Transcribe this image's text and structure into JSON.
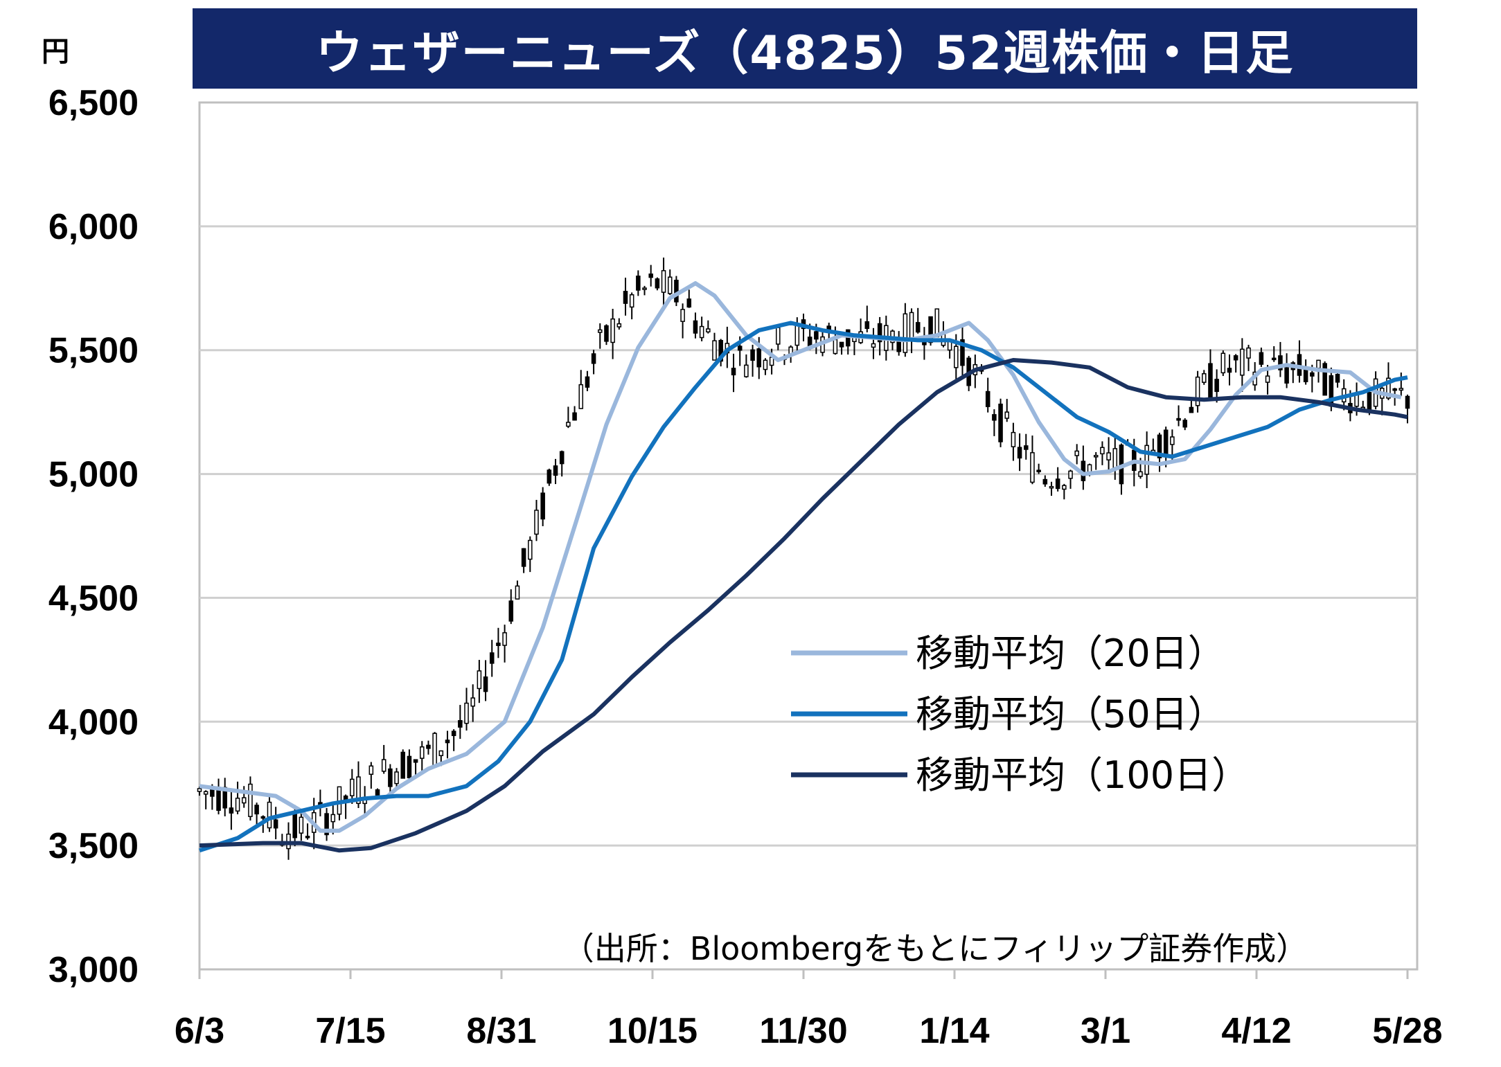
{
  "chart_data": {
    "type": "candlestick-line",
    "title": "ウェザーニューズ（4825）52週株価・日足",
    "unit": "円",
    "ylim": [
      3000,
      6500
    ],
    "yticks": [
      "6,500",
      "6,000",
      "5,500",
      "5,000",
      "4,500",
      "4,000",
      "3,500",
      "3,000"
    ],
    "ytick_values": [
      6500,
      6000,
      5500,
      5000,
      4500,
      4000,
      3500,
      3000
    ],
    "xticks": [
      "6/3",
      "7/15",
      "8/31",
      "10/15",
      "11/30",
      "1/14",
      "3/1",
      "4/12",
      "5/28"
    ],
    "grid": true,
    "legend_placement": "center-right",
    "source": "（出所：Bloombergをもとにフィリップ証券作成）",
    "series": [
      {
        "name": "移動平均（20日）",
        "color": "#9ab7dc",
        "points": [
          [
            0,
            3740
          ],
          [
            6,
            3720
          ],
          [
            12,
            3700
          ],
          [
            16,
            3640
          ],
          [
            19,
            3560
          ],
          [
            22,
            3560
          ],
          [
            26,
            3620
          ],
          [
            31,
            3730
          ],
          [
            36,
            3810
          ],
          [
            42,
            3870
          ],
          [
            48,
            4000
          ],
          [
            54,
            4380
          ],
          [
            60,
            4870
          ],
          [
            64,
            5200
          ],
          [
            69,
            5510
          ],
          [
            74,
            5710
          ],
          [
            78,
            5770
          ],
          [
            81,
            5720
          ],
          [
            86,
            5560
          ],
          [
            91,
            5460
          ],
          [
            96,
            5510
          ],
          [
            101,
            5560
          ],
          [
            106,
            5550
          ],
          [
            111,
            5540
          ],
          [
            116,
            5560
          ],
          [
            121,
            5610
          ],
          [
            124,
            5540
          ],
          [
            128,
            5400
          ],
          [
            132,
            5210
          ],
          [
            136,
            5060
          ],
          [
            139,
            5000
          ],
          [
            143,
            5010
          ],
          [
            147,
            5050
          ],
          [
            151,
            5040
          ],
          [
            155,
            5060
          ],
          [
            159,
            5180
          ],
          [
            163,
            5320
          ],
          [
            167,
            5420
          ],
          [
            171,
            5440
          ],
          [
            176,
            5420
          ],
          [
            181,
            5410
          ],
          [
            185,
            5330
          ],
          [
            189,
            5310
          ]
        ]
      },
      {
        "name": "移動平均（50日）",
        "color": "#1272bd",
        "points": [
          [
            0,
            3480
          ],
          [
            6,
            3530
          ],
          [
            11,
            3610
          ],
          [
            16,
            3640
          ],
          [
            21,
            3670
          ],
          [
            26,
            3690
          ],
          [
            31,
            3700
          ],
          [
            36,
            3700
          ],
          [
            42,
            3740
          ],
          [
            47,
            3840
          ],
          [
            52,
            4000
          ],
          [
            57,
            4250
          ],
          [
            62,
            4700
          ],
          [
            68,
            4990
          ],
          [
            73,
            5190
          ],
          [
            78,
            5350
          ],
          [
            83,
            5500
          ],
          [
            88,
            5580
          ],
          [
            93,
            5610
          ],
          [
            98,
            5580
          ],
          [
            103,
            5560
          ],
          [
            108,
            5550
          ],
          [
            113,
            5540
          ],
          [
            118,
            5540
          ],
          [
            123,
            5500
          ],
          [
            128,
            5430
          ],
          [
            133,
            5330
          ],
          [
            138,
            5230
          ],
          [
            143,
            5170
          ],
          [
            148,
            5090
          ],
          [
            153,
            5070
          ],
          [
            158,
            5110
          ],
          [
            163,
            5150
          ],
          [
            168,
            5190
          ],
          [
            173,
            5260
          ],
          [
            178,
            5300
          ],
          [
            183,
            5330
          ],
          [
            188,
            5380
          ],
          [
            190,
            5390
          ]
        ]
      },
      {
        "name": "移動平均（100日）",
        "color": "#1a3260",
        "points": [
          [
            0,
            3500
          ],
          [
            10,
            3510
          ],
          [
            16,
            3510
          ],
          [
            22,
            3480
          ],
          [
            27,
            3490
          ],
          [
            34,
            3550
          ],
          [
            42,
            3640
          ],
          [
            48,
            3740
          ],
          [
            54,
            3880
          ],
          [
            62,
            4030
          ],
          [
            68,
            4180
          ],
          [
            74,
            4320
          ],
          [
            80,
            4450
          ],
          [
            86,
            4590
          ],
          [
            92,
            4740
          ],
          [
            98,
            4900
          ],
          [
            104,
            5050
          ],
          [
            110,
            5200
          ],
          [
            116,
            5330
          ],
          [
            122,
            5420
          ],
          [
            128,
            5460
          ],
          [
            134,
            5450
          ],
          [
            140,
            5430
          ],
          [
            146,
            5350
          ],
          [
            152,
            5310
          ],
          [
            158,
            5300
          ],
          [
            164,
            5310
          ],
          [
            170,
            5310
          ],
          [
            176,
            5290
          ],
          [
            182,
            5260
          ],
          [
            188,
            5240
          ],
          [
            190,
            5230
          ]
        ]
      }
    ]
  }
}
